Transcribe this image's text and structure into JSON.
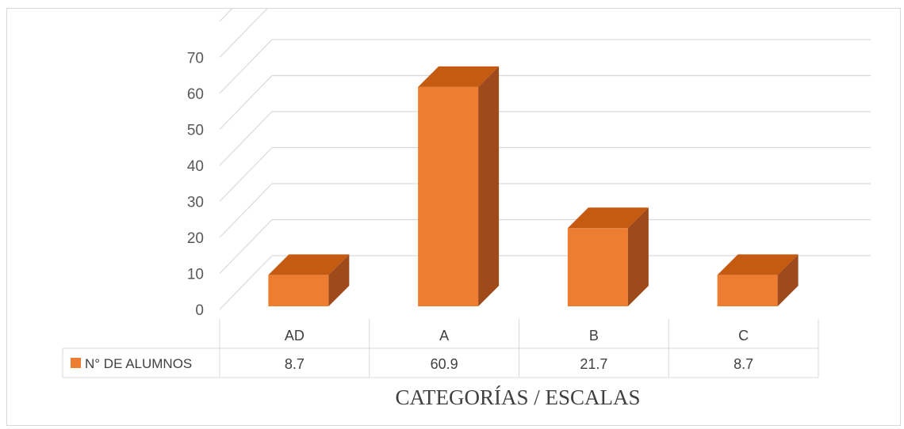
{
  "chart_data": {
    "type": "bar",
    "title": "",
    "xlabel": "CATEGORÍAS / ESCALAS",
    "ylabel": "",
    "categories": [
      "AD",
      "A",
      "B",
      "C"
    ],
    "series": [
      {
        "name": "N° DE ALUMNOS",
        "values": [
          8.7,
          60.9,
          21.7,
          8.7
        ],
        "value_labels": [
          "8.7",
          "60.9",
          "21.7",
          "8.7"
        ]
      }
    ],
    "ylim": [
      0,
      70
    ],
    "yticks": [
      "0",
      "10",
      "20",
      "30",
      "40",
      "50",
      "60",
      "70"
    ],
    "grid": true,
    "style": "3d-column",
    "legend_placement": "data-table-left",
    "colors": {
      "bar_front": "#ED7D31",
      "bar_top": "#C55A11",
      "bar_side": "#9E4A1A",
      "grid": "#d9d9d9"
    }
  }
}
